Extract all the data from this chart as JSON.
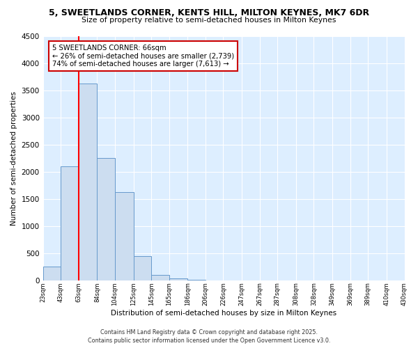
{
  "title": "5, SWEETLANDS CORNER, KENTS HILL, MILTON KEYNES, MK7 6DR",
  "subtitle": "Size of property relative to semi-detached houses in Milton Keynes",
  "xlabel": "Distribution of semi-detached houses by size in Milton Keynes",
  "ylabel": "Number of semi-detached properties",
  "bin_labels": [
    "23sqm",
    "43sqm",
    "63sqm",
    "84sqm",
    "104sqm",
    "125sqm",
    "145sqm",
    "165sqm",
    "186sqm",
    "206sqm",
    "226sqm",
    "247sqm",
    "267sqm",
    "287sqm",
    "308sqm",
    "328sqm",
    "349sqm",
    "369sqm",
    "389sqm",
    "410sqm",
    "430sqm"
  ],
  "bin_edges": [
    23,
    43,
    63,
    84,
    104,
    125,
    145,
    165,
    186,
    206,
    226,
    247,
    267,
    287,
    308,
    328,
    349,
    369,
    389,
    410,
    430
  ],
  "bar_heights": [
    250,
    2100,
    3620,
    2250,
    1620,
    450,
    100,
    30,
    5,
    0,
    0,
    0,
    0,
    0,
    0,
    0,
    0,
    0,
    0,
    0
  ],
  "bar_color": "#ccddf0",
  "bar_edgecolor": "#6699cc",
  "red_line_x": 63,
  "annotation_title": "5 SWEETLANDS CORNER: 66sqm",
  "annotation_line1": "← 26% of semi-detached houses are smaller (2,739)",
  "annotation_line2": "74% of semi-detached houses are larger (7,613) →",
  "annotation_box_color": "#ffffff",
  "annotation_box_edgecolor": "#cc0000",
  "ylim": [
    0,
    4500
  ],
  "yticks": [
    0,
    500,
    1000,
    1500,
    2000,
    2500,
    3000,
    3500,
    4000,
    4500
  ],
  "plot_bg_color": "#ddeeff",
  "fig_bg_color": "#ffffff",
  "grid_color": "#ffffff",
  "footer1": "Contains HM Land Registry data © Crown copyright and database right 2025.",
  "footer2": "Contains public sector information licensed under the Open Government Licence v3.0."
}
